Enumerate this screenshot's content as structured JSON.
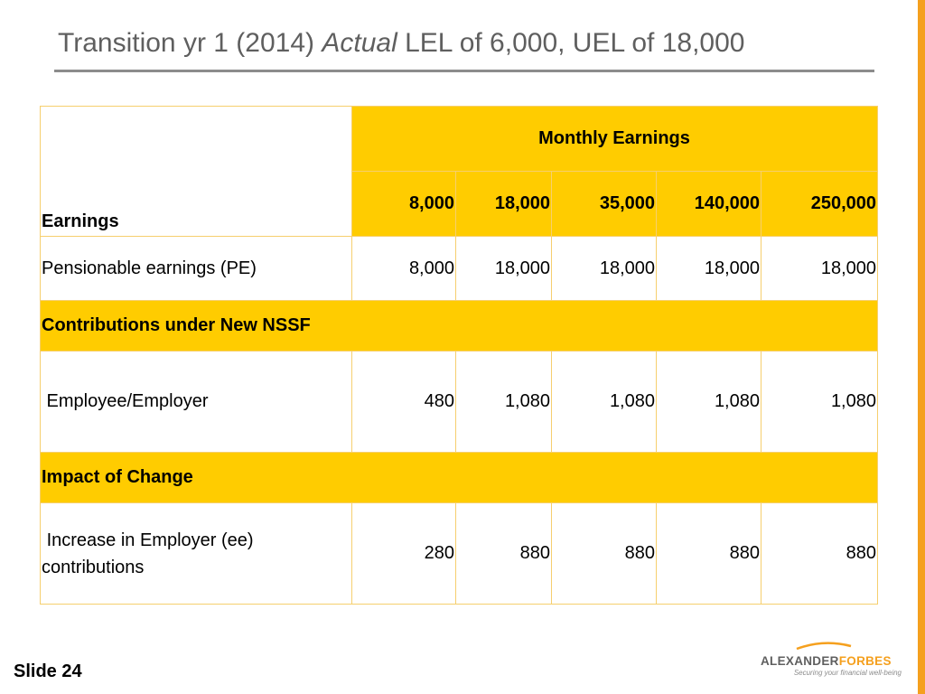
{
  "slide": {
    "title_prefix": "Transition yr 1 (2014)",
    "title_italic": "Actual",
    "title_suffix": "LEL of 6,000, UEL of 18,000",
    "slide_number": "Slide 24"
  },
  "brand": {
    "logo_part1": "ALEXANDER",
    "logo_part2": "FORBES",
    "tagline": "Securing your financial well-being",
    "accent_color": "#f5a01e",
    "highlight_color": "#ffcc00"
  },
  "table": {
    "corner_label": "Earnings",
    "group_header": "Monthly Earnings",
    "columns": [
      "8,000",
      "18,000",
      "35,000",
      "140,000",
      "250,000"
    ],
    "rows": {
      "pensionable": {
        "label": "Pensionable earnings  (PE)",
        "values": [
          "8,000",
          "18,000",
          "18,000",
          "18,000",
          "18,000"
        ]
      },
      "section_contrib": "Contributions under New NSSF",
      "employee": {
        "label": " Employee/Employer",
        "values": [
          "480",
          "1,080",
          "1,080",
          "1,080",
          "1,080"
        ]
      },
      "section_impact": "Impact of Change",
      "increase": {
        "label": " Increase in Employer (ee) contributions",
        "values": [
          "280",
          "880",
          "880",
          "880",
          "880"
        ]
      }
    }
  }
}
